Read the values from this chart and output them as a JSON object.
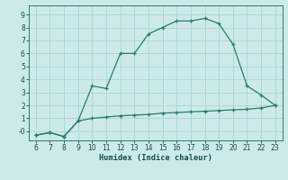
{
  "x": [
    6,
    7,
    8,
    9,
    10,
    11,
    12,
    13,
    14,
    15,
    16,
    17,
    18,
    19,
    20,
    21,
    22,
    23
  ],
  "y_upper": [
    -0.3,
    -0.1,
    -0.4,
    0.8,
    3.5,
    3.3,
    6.0,
    6.0,
    7.5,
    8.0,
    8.5,
    8.5,
    8.7,
    8.3,
    6.7,
    3.5,
    2.8,
    2.0
  ],
  "y_lower": [
    -0.3,
    -0.1,
    -0.4,
    0.8,
    1.0,
    1.1,
    1.2,
    1.25,
    1.3,
    1.4,
    1.45,
    1.5,
    1.55,
    1.6,
    1.65,
    1.7,
    1.8,
    2.0
  ],
  "line_color": "#2a7a6a",
  "bg_color": "#cceaea",
  "grid_color": "#aad4d4",
  "xlabel": "Humidex (Indice chaleur)",
  "ylim": [
    -0.7,
    9.7
  ],
  "xlim": [
    5.5,
    23.5
  ],
  "yticks": [
    0,
    1,
    2,
    3,
    4,
    5,
    6,
    7,
    8,
    9
  ],
  "ytick_labels": [
    "-0",
    "1",
    "2",
    "3",
    "4",
    "5",
    "6",
    "7",
    "8",
    "9"
  ],
  "xticks": [
    6,
    7,
    8,
    9,
    10,
    11,
    12,
    13,
    14,
    15,
    16,
    17,
    18,
    19,
    20,
    21,
    22,
    23
  ]
}
